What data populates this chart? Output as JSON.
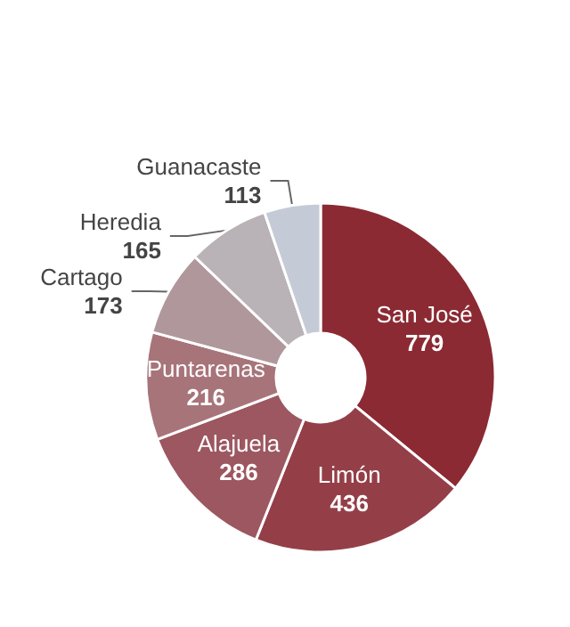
{
  "chart_data": {
    "type": "donut",
    "categories": [
      "San José",
      "Limón",
      "Alajuela",
      "Puntarenas",
      "Cartago",
      "Heredia",
      "Guanacaste"
    ],
    "values": [
      779,
      436,
      286,
      216,
      173,
      165,
      113
    ],
    "colors": [
      "#8b2a33",
      "#943f48",
      "#9c5760",
      "#a7747a",
      "#b0979b",
      "#b9b2b6",
      "#c5cbd6"
    ],
    "data_labels": true
  }
}
